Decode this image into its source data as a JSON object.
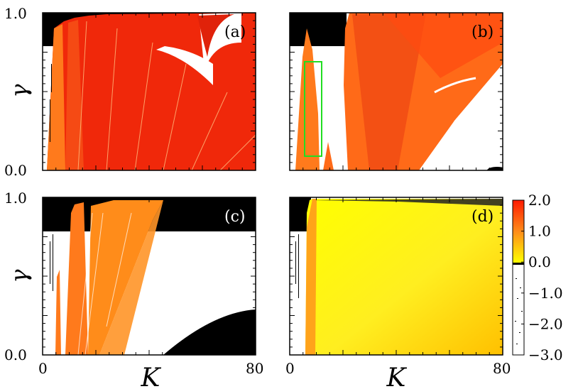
{
  "chart_data": [
    {
      "type": "heatmap",
      "panel_label": "(a)",
      "xlim": [
        0,
        80
      ],
      "ylim": [
        0.0,
        1.0
      ],
      "ylabel": "γ",
      "x_tick_labels": [],
      "y_tick_labels": [
        "1.0",
        "0.0"
      ]
    },
    {
      "type": "heatmap",
      "panel_label": "(b)",
      "xlim": [
        0,
        80
      ],
      "ylim": [
        0.0,
        1.0
      ],
      "highlight_box": {
        "x": [
          5,
          13
        ],
        "y": [
          0.07,
          0.7
        ],
        "color": "#22dd22"
      },
      "x_tick_labels": [],
      "y_tick_labels": []
    },
    {
      "type": "heatmap",
      "panel_label": "(c)",
      "xlim": [
        0,
        80
      ],
      "ylim": [
        0.0,
        1.0
      ],
      "xlabel": "K",
      "ylabel": "γ",
      "x_tick_labels": [
        "0",
        "80"
      ],
      "y_tick_labels": [
        "1.0",
        "0.0"
      ]
    },
    {
      "type": "heatmap",
      "panel_label": "(d)",
      "xlim": [
        0,
        80
      ],
      "ylim": [
        0.0,
        1.0
      ],
      "xlabel": "K",
      "x_tick_labels": [
        "0",
        "80"
      ],
      "y_tick_labels": []
    }
  ],
  "colorbar": {
    "range": [
      -3.0,
      2.0
    ],
    "tick_labels": [
      "2.0",
      "1.0",
      "0.0",
      "−1.0",
      "−2.0",
      "−3.0"
    ],
    "colors": {
      "high": "#ff1a00",
      "mid": "#ff8c1a",
      "low": "#ffff00",
      "zero": "#000000",
      "negative": "#ffffff"
    }
  }
}
